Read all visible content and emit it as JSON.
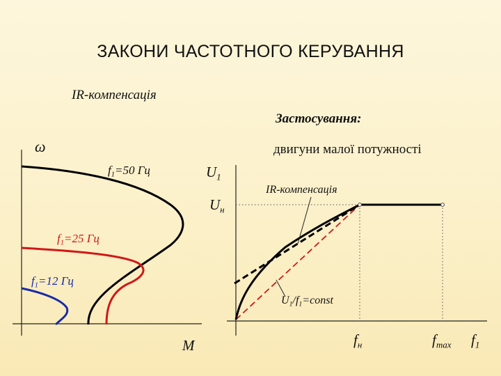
{
  "title": "ЗАКОНИ ЧАСТОТНОГО КЕРУВАННЯ",
  "left_chart": {
    "heading": "IR-компенсація",
    "y_axis_symbol": "ω",
    "x_axis_symbol": "M",
    "curves": [
      {
        "f_symbol": "f",
        "f_sub": "1",
        "value_text": "=50 Гц",
        "color": "#000000"
      },
      {
        "f_symbol": "f",
        "f_sub": "1",
        "value_text": "=25 Гц",
        "color": "#d01818"
      },
      {
        "f_symbol": "f",
        "f_sub": "1",
        "value_text": "=12 Гц",
        "color": "#1a2aa8"
      }
    ]
  },
  "application": {
    "heading": "Застосування:",
    "text": "двигуни малої потужності"
  },
  "right_chart": {
    "y_axis_symbol": "U",
    "y_axis_sub": "1",
    "rated_voltage_symbol": "U",
    "rated_voltage_sub": "н",
    "ir_label": "IR-компенсація",
    "ratio_u": "U",
    "ratio_u_sub": "1",
    "ratio_slash_f": "/f",
    "ratio_f_sub": "1",
    "ratio_text": "=const",
    "x_rated_symbol": "f",
    "x_rated_sub": "н",
    "x_max_symbol": "f",
    "x_max_sub": "max",
    "x_axis_symbol": "f",
    "x_axis_sub": "1",
    "colors": {
      "ratio_line": "#d01818",
      "main_line": "#000000"
    }
  }
}
